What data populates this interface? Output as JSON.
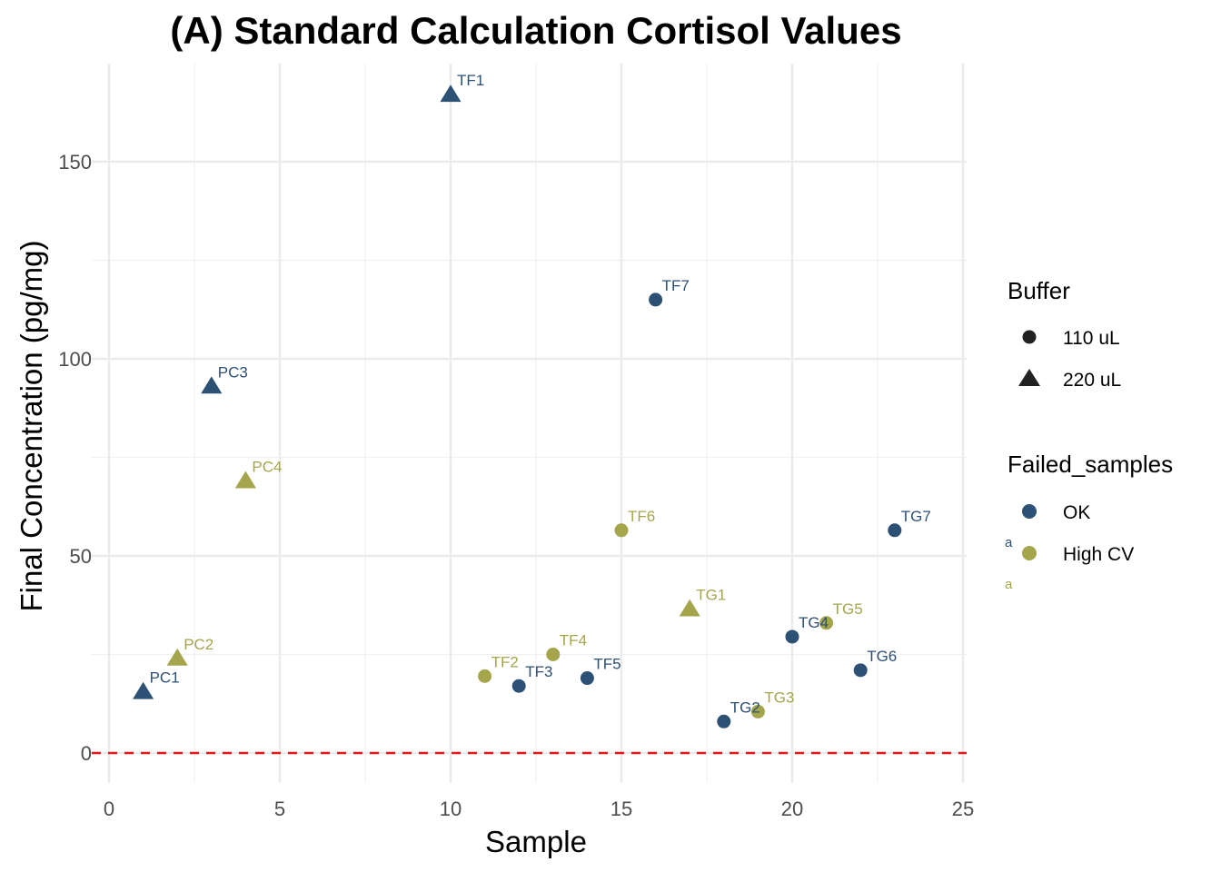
{
  "chart_data": {
    "type": "scatter",
    "title": "(A) Standard Calculation Cortisol Values",
    "xlabel": "Sample",
    "ylabel": "Final Concentration (pg/mg)",
    "xlim": [
      0,
      25
    ],
    "ylim": [
      -8,
      170
    ],
    "x_ticks": [
      "0",
      "5",
      "10",
      "15",
      "20",
      "25"
    ],
    "y_ticks": [
      "0",
      "50",
      "100",
      "150"
    ],
    "grid": true,
    "reference_line": {
      "y": 0,
      "color": "#e31a1c",
      "style": "dashed"
    },
    "colors": {
      "OK": "#2d5075",
      "High CV": "#a5a64c"
    },
    "points": [
      {
        "label": "PC1",
        "x": 1,
        "y": 15.5,
        "buffer": "220 uL",
        "status": "OK"
      },
      {
        "label": "PC2",
        "x": 2,
        "y": 24,
        "buffer": "220 uL",
        "status": "High CV"
      },
      {
        "label": "PC3",
        "x": 3,
        "y": 93,
        "buffer": "220 uL",
        "status": "OK"
      },
      {
        "label": "PC4",
        "x": 4,
        "y": 69,
        "buffer": "220 uL",
        "status": "High CV"
      },
      {
        "label": "TF1",
        "x": 10,
        "y": 167,
        "buffer": "220 uL",
        "status": "OK"
      },
      {
        "label": "TF2",
        "x": 11,
        "y": 19.5,
        "buffer": "110 uL",
        "status": "High CV"
      },
      {
        "label": "TF3",
        "x": 12,
        "y": 17,
        "buffer": "110 uL",
        "status": "OK"
      },
      {
        "label": "TF4",
        "x": 13,
        "y": 25,
        "buffer": "110 uL",
        "status": "High CV"
      },
      {
        "label": "TF5",
        "x": 14,
        "y": 19,
        "buffer": "110 uL",
        "status": "OK"
      },
      {
        "label": "TF6",
        "x": 15,
        "y": 56.5,
        "buffer": "110 uL",
        "status": "High CV"
      },
      {
        "label": "TF7",
        "x": 16,
        "y": 115,
        "buffer": "110 uL",
        "status": "OK"
      },
      {
        "label": "TG1",
        "x": 17,
        "y": 36.5,
        "buffer": "220 uL",
        "status": "High CV"
      },
      {
        "label": "TG2",
        "x": 18,
        "y": 8,
        "buffer": "110 uL",
        "status": "OK"
      },
      {
        "label": "TG3",
        "x": 19,
        "y": 10.5,
        "buffer": "110 uL",
        "status": "High CV"
      },
      {
        "label": "TG4",
        "x": 20,
        "y": 29.5,
        "buffer": "110 uL",
        "status": "OK"
      },
      {
        "label": "TG5",
        "x": 21,
        "y": 33,
        "buffer": "110 uL",
        "status": "High CV"
      },
      {
        "label": "TG6",
        "x": 22,
        "y": 21,
        "buffer": "110 uL",
        "status": "OK"
      },
      {
        "label": "TG7",
        "x": 23,
        "y": 56.5,
        "buffer": "110 uL",
        "status": "OK"
      }
    ],
    "legend": {
      "position": "right",
      "buffer_title": "Buffer",
      "buffer_items": [
        {
          "label": "110 uL",
          "shape": "circle"
        },
        {
          "label": "220 uL",
          "shape": "triangle"
        }
      ],
      "status_title": "Failed_samples",
      "status_items": [
        {
          "label": "OK",
          "key_text": "a"
        },
        {
          "label": "High CV",
          "key_text": "a"
        }
      ]
    }
  }
}
